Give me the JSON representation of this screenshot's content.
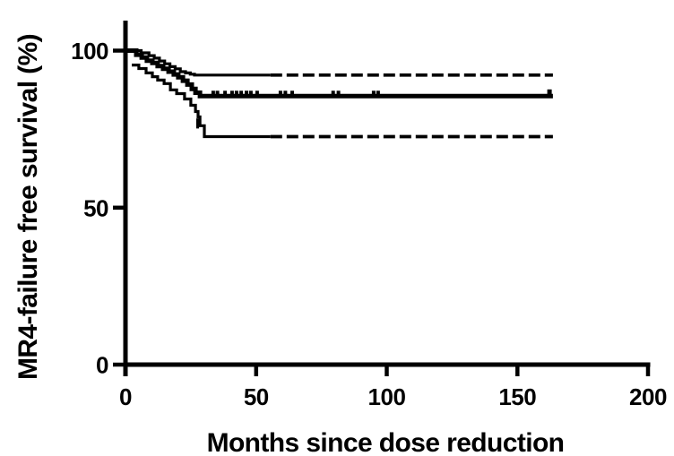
{
  "chart_data": {
    "type": "line",
    "subtype": "kaplan_meier_step",
    "title": "",
    "xlabel": "Months since dose reduction",
    "ylabel": "MR4-failure free survival (%)",
    "xlim": [
      0,
      200
    ],
    "ylim": [
      0,
      100
    ],
    "xticks": [
      0,
      50,
      100,
      150,
      200
    ],
    "yticks": [
      0,
      50,
      100
    ],
    "grid": false,
    "legend_position": "none",
    "line_color": "#000000",
    "background_color": "#ffffff",
    "series": [
      {
        "name": "MR4-failure free survival (KM estimate)",
        "role": "estimate",
        "style": "solid",
        "thickness": "thick",
        "end_month": 163.6,
        "steps": [
          [
            0,
            100
          ],
          [
            4.1,
            98.7
          ],
          [
            6.2,
            97.8
          ],
          [
            8.2,
            96.8
          ],
          [
            10.3,
            96.1
          ],
          [
            12.3,
            95.1
          ],
          [
            14.4,
            94.2
          ],
          [
            16.5,
            93.3
          ],
          [
            18.5,
            92.4
          ],
          [
            20.2,
            91.5
          ],
          [
            22.0,
            90.4
          ],
          [
            23.7,
            89.2
          ],
          [
            25.4,
            87.8
          ],
          [
            26.8,
            86.6
          ],
          [
            28.5,
            85.5
          ]
        ]
      },
      {
        "name": "95% CI upper bound",
        "role": "ci_upper",
        "style": "solid_then_dashed",
        "thickness": "thin",
        "dash_from_month": 55.5,
        "end_month": 163.6,
        "steps": [
          [
            0,
            100
          ],
          [
            6.0,
            99.3
          ],
          [
            9.0,
            98.4
          ],
          [
            11.0,
            97.6
          ],
          [
            13.0,
            96.7
          ],
          [
            15.0,
            95.8
          ],
          [
            17.0,
            94.9
          ],
          [
            19.0,
            94.2
          ],
          [
            21.0,
            93.3
          ],
          [
            23.0,
            92.9
          ],
          [
            24.8,
            92.5
          ],
          [
            26.4,
            92.2
          ]
        ]
      },
      {
        "name": "95% CI lower bound",
        "role": "ci_lower",
        "style": "solid_then_dashed",
        "thickness": "thin",
        "dash_from_month": 55.5,
        "end_month": 163.6,
        "steps": [
          [
            2.4,
            95.4
          ],
          [
            5.1,
            94.3
          ],
          [
            7.9,
            92.9
          ],
          [
            10.3,
            91.7
          ],
          [
            12.3,
            90.6
          ],
          [
            14.8,
            89.5
          ],
          [
            17.2,
            87.5
          ],
          [
            19.6,
            86.3
          ],
          [
            22.6,
            84.6
          ],
          [
            25.0,
            82.6
          ],
          [
            26.8,
            80.6
          ],
          [
            27.8,
            78.9
          ],
          [
            28.5,
            76.1
          ],
          [
            30.2,
            72.6
          ]
        ]
      }
    ],
    "plateau_values": {
      "estimate_pct": 85.5,
      "ci_upper_pct": 92.2,
      "ci_lower_pct": 72.6
    },
    "censor_tick_months": [
      33.6,
      35.2,
      38.1,
      40.8,
      42.5,
      44.3,
      46.3,
      48.0,
      50.4,
      59.3,
      61.2,
      63.8,
      79.5,
      81.5,
      95.0,
      96.7
    ],
    "end_censor_tick_month": 162.3,
    "lower_ci_censor_tick": {
      "month": 27.6,
      "pct_from": 75.2,
      "pct_to": 78.4
    }
  }
}
